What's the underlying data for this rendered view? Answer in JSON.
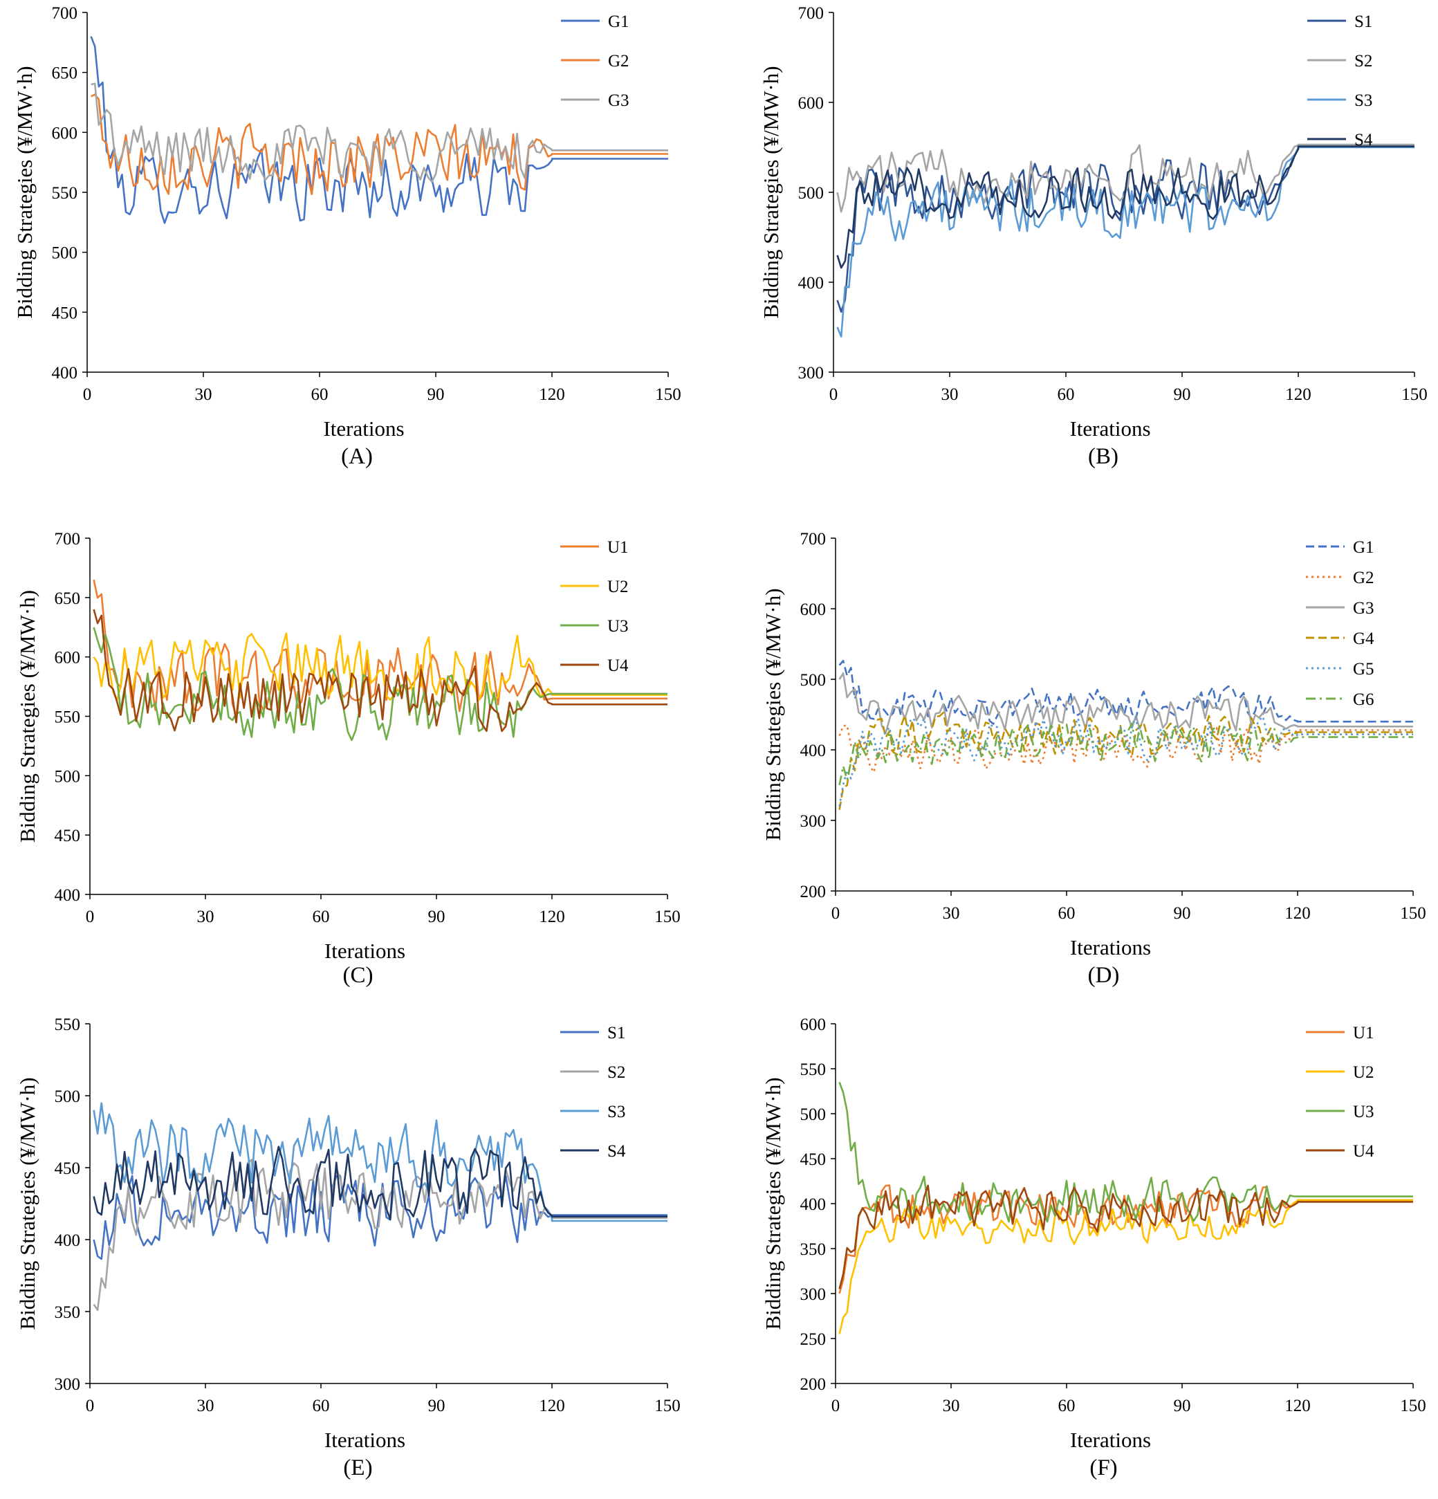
{
  "chart_data": [
    {
      "type": "line",
      "caption": "(A)",
      "xlabel": "Iterations",
      "ylabel": "Bidding Strategies (¥/MW·h)",
      "xlim": [
        0,
        150
      ],
      "ylim": [
        400,
        700
      ],
      "xticks": [
        0,
        30,
        60,
        90,
        120,
        150
      ],
      "yticks": [
        400,
        450,
        500,
        550,
        600,
        650,
        700
      ],
      "converge_at": 120,
      "legend_position": "top-right",
      "series": [
        {
          "name": "G1",
          "color": "#4472C4",
          "dash": "solid",
          "start": 680,
          "mean": 555,
          "amp": 35,
          "final": 578
        },
        {
          "name": "G2",
          "color": "#ED7D31",
          "dash": "solid",
          "start": 630,
          "mean": 578,
          "amp": 35,
          "final": 582
        },
        {
          "name": "G3",
          "color": "#A5A5A5",
          "dash": "solid",
          "start": 640,
          "mean": 585,
          "amp": 30,
          "final": 585
        }
      ]
    },
    {
      "type": "line",
      "caption": "(B)",
      "xlabel": "Iterations",
      "ylabel": "Bidding Strategies (¥/MW·h)",
      "xlim": [
        0,
        150
      ],
      "ylim": [
        300,
        700
      ],
      "xticks": [
        0,
        30,
        60,
        90,
        120,
        150
      ],
      "yticks": [
        300,
        400,
        500,
        600,
        700
      ],
      "converge_at": 120,
      "legend_position": "top-right",
      "series": [
        {
          "name": "S1",
          "color": "#2F5597",
          "dash": "solid",
          "start": 380,
          "mean": 505,
          "amp": 40,
          "final": 552
        },
        {
          "name": "S2",
          "color": "#A5A5A5",
          "dash": "solid",
          "start": 500,
          "mean": 520,
          "amp": 35,
          "final": 553
        },
        {
          "name": "S3",
          "color": "#5B9BD5",
          "dash": "solid",
          "start": 350,
          "mean": 480,
          "amp": 40,
          "final": 550
        },
        {
          "name": "S4",
          "color": "#203864",
          "dash": "solid",
          "start": 430,
          "mean": 500,
          "amp": 35,
          "final": 551
        }
      ]
    },
    {
      "type": "line",
      "caption": "(C)",
      "xlabel": "Iterations",
      "ylabel": "Bidding Strategies (¥/MW·h)",
      "xlim": [
        0,
        150
      ],
      "ylim": [
        400,
        700
      ],
      "xticks": [
        0,
        30,
        60,
        90,
        120,
        150
      ],
      "yticks": [
        400,
        450,
        500,
        550,
        600,
        650,
        700
      ],
      "converge_at": 120,
      "legend_position": "top-right",
      "series": [
        {
          "name": "U1",
          "color": "#ED7D31",
          "dash": "solid",
          "start": 665,
          "mean": 580,
          "amp": 35,
          "final": 565
        },
        {
          "name": "U2",
          "color": "#FFC000",
          "dash": "solid",
          "start": 600,
          "mean": 590,
          "amp": 35,
          "final": 568
        },
        {
          "name": "U3",
          "color": "#70AD47",
          "dash": "solid",
          "start": 625,
          "mean": 560,
          "amp": 35,
          "final": 569
        },
        {
          "name": "U4",
          "color": "#9E480E",
          "dash": "solid",
          "start": 640,
          "mean": 565,
          "amp": 35,
          "final": 560
        }
      ]
    },
    {
      "type": "line",
      "caption": "(D)",
      "xlabel": "Iterations",
      "ylabel": "Bidding Strategies (¥/MW·h)",
      "xlim": [
        0,
        150
      ],
      "ylim": [
        200,
        700
      ],
      "xticks": [
        0,
        30,
        60,
        90,
        120,
        150
      ],
      "yticks": [
        200,
        300,
        400,
        500,
        600,
        700
      ],
      "converge_at": 120,
      "legend_position": "top-right",
      "series": [
        {
          "name": "G1",
          "color": "#4472C4",
          "dash": "dash",
          "start": 520,
          "mean": 462,
          "amp": 30,
          "final": 440
        },
        {
          "name": "G2",
          "color": "#ED7D31",
          "dash": "dot",
          "start": 420,
          "mean": 400,
          "amp": 35,
          "final": 428
        },
        {
          "name": "G3",
          "color": "#A5A5A5",
          "dash": "solid",
          "start": 500,
          "mean": 450,
          "amp": 30,
          "final": 433
        },
        {
          "name": "G4",
          "color": "#BF9000",
          "dash": "dash",
          "start": 315,
          "mean": 420,
          "amp": 35,
          "final": 425
        },
        {
          "name": "G5",
          "color": "#5B9BD5",
          "dash": "dot",
          "start": 320,
          "mean": 415,
          "amp": 35,
          "final": 422
        },
        {
          "name": "G6",
          "color": "#70AD47",
          "dash": "dashdot",
          "start": 350,
          "mean": 410,
          "amp": 35,
          "final": 418
        }
      ]
    },
    {
      "type": "line",
      "caption": "(E)",
      "xlabel": "Iterations",
      "ylabel": "Bidding Strategies (¥/MW·h)",
      "xlim": [
        0,
        150
      ],
      "ylim": [
        300,
        550
      ],
      "xticks": [
        0,
        30,
        60,
        90,
        120,
        150
      ],
      "yticks": [
        300,
        350,
        400,
        450,
        500,
        550
      ],
      "converge_at": 120,
      "legend_position": "top-right",
      "series": [
        {
          "name": "S1",
          "color": "#4472C4",
          "dash": "solid",
          "start": 400,
          "mean": 420,
          "amp": 30,
          "final": 417
        },
        {
          "name": "S2",
          "color": "#A5A5A5",
          "dash": "solid",
          "start": 355,
          "mean": 430,
          "amp": 30,
          "final": 415
        },
        {
          "name": "S3",
          "color": "#5B9BD5",
          "dash": "solid",
          "start": 490,
          "mean": 460,
          "amp": 30,
          "final": 413
        },
        {
          "name": "S4",
          "color": "#203864",
          "dash": "solid",
          "start": 430,
          "mean": 440,
          "amp": 30,
          "final": 416
        }
      ]
    },
    {
      "type": "line",
      "caption": "(F)",
      "xlabel": "Iterations",
      "ylabel": "Bidding Strategies (¥/MW·h)",
      "xlim": [
        0,
        150
      ],
      "ylim": [
        200,
        600
      ],
      "xticks": [
        0,
        30,
        60,
        90,
        120,
        150
      ],
      "yticks": [
        200,
        250,
        300,
        350,
        400,
        450,
        500,
        550,
        600
      ],
      "converge_at": 120,
      "legend_position": "top-right",
      "series": [
        {
          "name": "U1",
          "color": "#ED7D31",
          "dash": "solid",
          "start": 300,
          "mean": 395,
          "amp": 30,
          "final": 403
        },
        {
          "name": "U2",
          "color": "#FFC000",
          "dash": "solid",
          "start": 255,
          "mean": 375,
          "amp": 25,
          "final": 404
        },
        {
          "name": "U3",
          "color": "#70AD47",
          "dash": "solid",
          "start": 535,
          "mean": 405,
          "amp": 30,
          "final": 408
        },
        {
          "name": "U4",
          "color": "#9E480E",
          "dash": "solid",
          "start": 305,
          "mean": 395,
          "amp": 30,
          "final": 402
        }
      ]
    }
  ]
}
